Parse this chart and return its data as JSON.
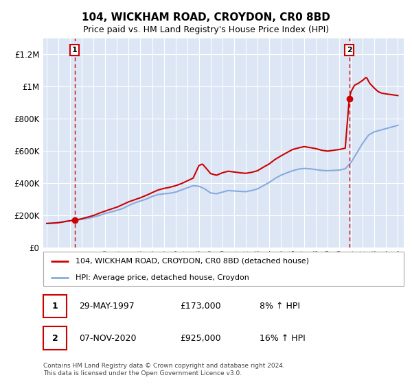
{
  "title": "104, WICKHAM ROAD, CROYDON, CR0 8BD",
  "subtitle": "Price paid vs. HM Land Registry's House Price Index (HPI)",
  "footnote": "Contains HM Land Registry data © Crown copyright and database right 2024.\nThis data is licensed under the Open Government Licence v3.0.",
  "legend_label_red": "104, WICKHAM ROAD, CROYDON, CR0 8BD (detached house)",
  "legend_label_blue": "HPI: Average price, detached house, Croydon",
  "annotation1_label": "1",
  "annotation1_date": "29-MAY-1997",
  "annotation1_price": "£173,000",
  "annotation1_hpi": "8% ↑ HPI",
  "annotation2_label": "2",
  "annotation2_date": "07-NOV-2020",
  "annotation2_price": "£925,000",
  "annotation2_hpi": "16% ↑ HPI",
  "ylim": [
    0,
    1300000
  ],
  "yticks": [
    0,
    200000,
    400000,
    600000,
    800000,
    1000000,
    1200000
  ],
  "ytick_labels": [
    "£0",
    "£200K",
    "£400K",
    "£600K",
    "£800K",
    "£1M",
    "£1.2M"
  ],
  "background_color": "#dce6f5",
  "grid_color": "#ffffff",
  "red_color": "#cc0000",
  "blue_color": "#88aadd",
  "marker_color": "#cc0000",
  "vline_color": "#cc0000",
  "annotation_box_color": "#cc0000",
  "sale1_x": 1997.38,
  "sale1_y": 173000,
  "sale2_x": 2020.84,
  "sale2_y": 925000,
  "xlim_left": 1994.7,
  "xlim_right": 2025.5
}
